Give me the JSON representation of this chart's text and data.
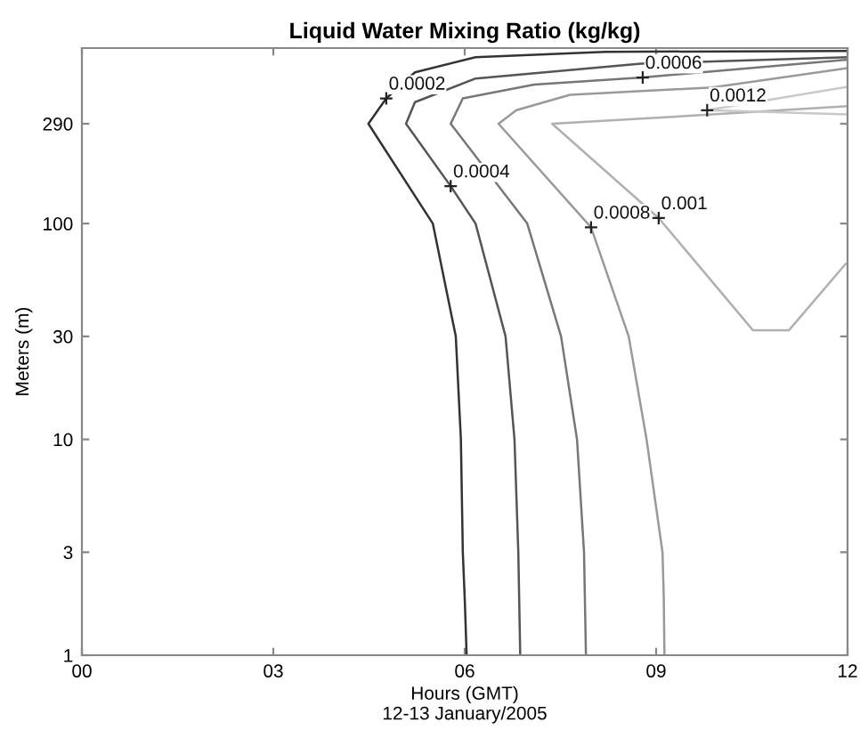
{
  "chart_data": {
    "type": "line",
    "title": "Liquid Water Mixing Ratio (kg/kg)",
    "xlabel": "Hours (GMT)\n12-13 January/2005",
    "ylabel": "Meters (m)",
    "log": "y",
    "grid": false,
    "legend": false,
    "marker": "none",
    "line_style": "solid",
    "xlim": [
      0,
      12
    ],
    "ylim": [
      1,
      650
    ],
    "xticks": [
      {
        "value": 0,
        "label": "00"
      },
      {
        "value": 3,
        "label": "03"
      },
      {
        "value": 6,
        "label": "06"
      },
      {
        "value": 9,
        "label": "09"
      },
      {
        "value": 12,
        "label": "12"
      }
    ],
    "yticks": [
      1,
      3,
      10,
      30,
      100,
      290
    ],
    "series": [
      {
        "color": "#333333",
        "x": [
          6.03,
          6.0,
          5.97,
          5.94,
          5.86,
          5.5,
          4.49,
          4.77,
          5.22,
          6.17,
          8.2,
          12
        ],
        "values": [
          1,
          1.84,
          3,
          10,
          30,
          100,
          290,
          380,
          502,
          590,
          625,
          630
        ]
      },
      {
        "color": "#555555",
        "x": [
          6.87,
          6.84,
          6.78,
          6.64,
          6.17,
          5.78,
          5.08,
          5.22,
          6.17,
          8.76,
          12
        ],
        "values": [
          1,
          3,
          10,
          30,
          100,
          149,
          290,
          365,
          470,
          550,
          590
        ]
      },
      {
        "color": "#777777",
        "x": [
          7.9,
          7.87,
          7.76,
          7.51,
          6.98,
          5.78,
          5.97,
          7.09,
          8.79,
          12
        ],
        "values": [
          1,
          3,
          10,
          30,
          100,
          290,
          380,
          440,
          475,
          575
        ]
      },
      {
        "color": "#999999",
        "x": [
          9.13,
          9.12,
          9.1,
          8.85,
          8.57,
          7.98,
          6.53,
          6.81,
          7.65,
          9.88,
          12
        ],
        "values": [
          1,
          1.84,
          3,
          10,
          30,
          96,
          290,
          335,
          395,
          427,
          525
        ]
      },
      {
        "color": "#b0b0b0",
        "x": [
          12,
          9.88,
          7.37,
          9.04,
          10.52,
          11.08,
          11.97
        ],
        "values": [
          350,
          320,
          290,
          106,
          32,
          32,
          65
        ]
      },
      {
        "color": "#c8c8c8",
        "x": [
          12,
          9.8,
          12
        ],
        "values": [
          430,
          335,
          320
        ]
      }
    ],
    "annotations": [
      {
        "text": "0.0002",
        "x": 4.77,
        "y": 380
      },
      {
        "text": "0.0004",
        "x": 5.78,
        "y": 149
      },
      {
        "text": "0.0006",
        "x": 8.79,
        "y": 475
      },
      {
        "text": "0.0012",
        "x": 9.8,
        "y": 335
      },
      {
        "text": "0.0008",
        "x": 7.98,
        "y": 96
      },
      {
        "text": "0.001",
        "x": 9.04,
        "y": 106
      }
    ]
  }
}
